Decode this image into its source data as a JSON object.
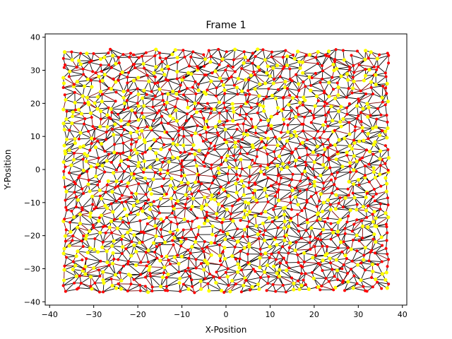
{
  "chart_data": {
    "type": "scatter",
    "title": "Frame 1",
    "xlabel": "X-Position",
    "ylabel": "Y-Position",
    "xlim": [
      -41,
      41
    ],
    "ylim": [
      -41,
      41
    ],
    "xticks": [
      -40,
      -30,
      -20,
      -10,
      0,
      10,
      20,
      30,
      40
    ],
    "yticks": [
      -40,
      -30,
      -20,
      -10,
      0,
      10,
      20,
      30,
      40
    ],
    "grid": false,
    "legend": "none",
    "point_grid": {
      "x_start": -36.5,
      "x_end": 36.5,
      "y_start": -36.5,
      "y_end": 35.5,
      "count_x": 41,
      "count_y": 40,
      "jitter": 0.9
    },
    "colors": {
      "edge": "#000000",
      "edge_alt": "#7a0000",
      "node_red": "#ff0000",
      "node_yellow": "#ffff00"
    }
  }
}
